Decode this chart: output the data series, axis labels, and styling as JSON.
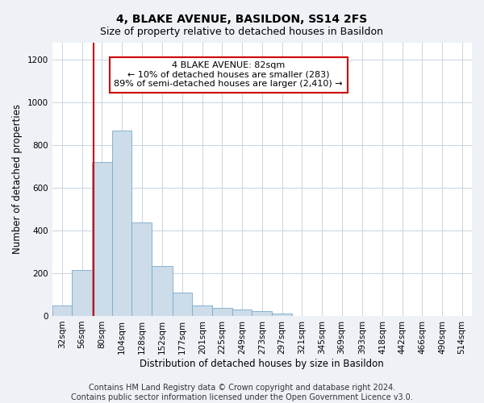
{
  "title": "4, BLAKE AVENUE, BASILDON, SS14 2FS",
  "subtitle": "Size of property relative to detached houses in Basildon",
  "xlabel": "Distribution of detached houses by size in Basildon",
  "ylabel": "Number of detached properties",
  "footer_line1": "Contains HM Land Registry data © Crown copyright and database right 2024.",
  "footer_line2": "Contains public sector information licensed under the Open Government Licence v3.0.",
  "annotation_title": "4 BLAKE AVENUE: 82sqm",
  "annotation_line1": "← 10% of detached houses are smaller (283)",
  "annotation_line2": "89% of semi-detached houses are larger (2,410) →",
  "property_sqm": 82,
  "bar_color": "#ccdce8",
  "bar_edge_color": "#7aaac8",
  "red_line_color": "#cc0000",
  "bin_edges": [
    32,
    56,
    80,
    104,
    128,
    152,
    177,
    201,
    225,
    249,
    273,
    297,
    321,
    345,
    369,
    393,
    418,
    442,
    466,
    490,
    514,
    538
  ],
  "values": [
    48,
    213,
    720,
    868,
    438,
    233,
    108,
    48,
    38,
    30,
    22,
    10,
    0,
    0,
    0,
    0,
    0,
    0,
    0,
    0,
    0
  ],
  "tick_labels": [
    "32sqm",
    "56sqm",
    "80sqm",
    "104sqm",
    "128sqm",
    "152sqm",
    "177sqm",
    "201sqm",
    "225sqm",
    "249sqm",
    "273sqm",
    "297sqm",
    "321sqm",
    "345sqm",
    "369sqm",
    "393sqm",
    "418sqm",
    "442sqm",
    "466sqm",
    "490sqm",
    "514sqm"
  ],
  "ylim": [
    0,
    1280
  ],
  "yticks": [
    0,
    200,
    400,
    600,
    800,
    1000,
    1200
  ],
  "bg_color": "#eef2f7",
  "plot_bg_color": "#ffffff",
  "grid_color": "#c8d4e0",
  "annotation_box_color": "#ffffff",
  "annotation_border_color": "#cc0000",
  "title_fontsize": 10,
  "subtitle_fontsize": 9,
  "axis_label_fontsize": 8.5,
  "tick_fontsize": 7.5,
  "annotation_fontsize": 8,
  "footer_fontsize": 7
}
